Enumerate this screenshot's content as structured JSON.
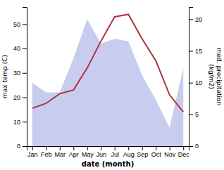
{
  "chart_data": {
    "type": "line",
    "x_label": "date (month)",
    "y_label": "max temp (C)",
    "y2_label": "med. precipitation\n(kg/m2)",
    "categories": [
      "Jan",
      "Feb",
      "Mar",
      "Apr",
      "May",
      "Jun",
      "Jul",
      "Aug",
      "Sep",
      "Oct",
      "Nov",
      "Dec"
    ],
    "series": [
      {
        "type": "area",
        "color": "#c8cdf0",
        "values": [
          26,
          22,
          22,
          36,
          52,
          42,
          44,
          43,
          29,
          19,
          7.5,
          32
        ]
      },
      {
        "type": "line",
        "color": "#b03040",
        "values": [
          15.5,
          17.5,
          21.5,
          23.0,
          32.0,
          43.0,
          53.0,
          54.0,
          44.0,
          35.0,
          21.0,
          14.0
        ]
      }
    ],
    "ylim": [
      0,
      57
    ],
    "yticks": [
      0,
      10,
      20,
      30,
      40,
      50
    ],
    "y2lim": [
      0,
      21.923076923076923
    ],
    "y2ticks": [
      0,
      5,
      10,
      15,
      20
    ],
    "grid": false
  }
}
